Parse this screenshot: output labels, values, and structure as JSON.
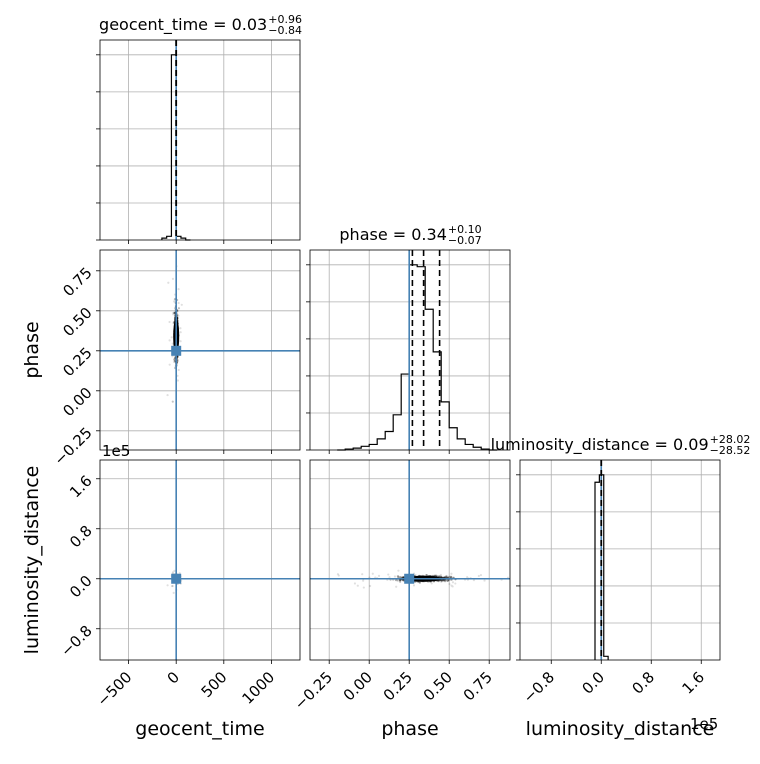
{
  "chart_data": {
    "type": "corner",
    "grid": true,
    "parameters": [
      {
        "name": "geocent_time",
        "label": "geocent_time",
        "median": "0.03",
        "plus": "+0.96",
        "minus": "−0.84",
        "title_prefix": "geocent_time = 0.03",
        "range": [
          -800,
          1300
        ],
        "ticks": [
          -500,
          0,
          500,
          1000
        ],
        "tick_labels": [
          "−500",
          "0",
          "500",
          "1000"
        ],
        "truth": 0.03,
        "quantiles": [
          -0.81,
          0.03,
          0.99
        ],
        "hist_edges": [
          -150,
          -100,
          -50,
          0,
          50,
          100,
          150
        ],
        "hist_counts": [
          0.01,
          0.02,
          1.0,
          0.02,
          0.01,
          0.0
        ]
      },
      {
        "name": "phase",
        "label": "phase",
        "median": "0.34",
        "plus": "+0.10",
        "minus": "−0.07",
        "title_prefix": "phase = 0.34",
        "range": [
          -0.37,
          0.88
        ],
        "ticks": [
          -0.25,
          0.0,
          0.25,
          0.5,
          0.75
        ],
        "tick_labels": [
          "−0.25",
          "0.00",
          "0.25",
          "0.50",
          "0.75"
        ],
        "truth": 0.25,
        "quantiles": [
          0.27,
          0.34,
          0.44
        ],
        "hist_edges": [
          -0.2,
          -0.15,
          -0.1,
          -0.05,
          0.0,
          0.05,
          0.1,
          0.15,
          0.2,
          0.25,
          0.3,
          0.35,
          0.4,
          0.45,
          0.5,
          0.55,
          0.6,
          0.65,
          0.7,
          0.75,
          0.8
        ],
        "hist_counts": [
          0.0,
          0.005,
          0.01,
          0.02,
          0.03,
          0.06,
          0.1,
          0.19,
          0.41,
          1.0,
          0.99,
          0.76,
          0.53,
          0.26,
          0.12,
          0.06,
          0.03,
          0.015,
          0.005,
          0.0
        ]
      },
      {
        "name": "luminosity_distance",
        "label": "luminosity_distance",
        "median": "0.09",
        "plus": "+28.02",
        "minus": "−28.52",
        "title_prefix": "luminosity_distance = 0.09",
        "range": [
          -130000,
          190000
        ],
        "ticks": [
          -80000,
          0,
          80000,
          160000
        ],
        "tick_labels": [
          "−0.8",
          "0.0",
          "0.8",
          "1.6"
        ],
        "offset_label": "1e5",
        "truth": 0.0,
        "quantiles": [
          -28.43,
          0.09,
          28.11
        ],
        "hist_edges": [
          -10000,
          -3000,
          4000,
          11000
        ],
        "hist_counts": [
          0.96,
          1.0,
          0.02
        ]
      }
    ],
    "scatter": [
      {
        "x": 0.03,
        "y": 0.34,
        "sx": 8,
        "sy": 0.07,
        "truth_point": [
          0.03,
          0.25
        ]
      },
      {
        "x": 0.03,
        "y": 0.0,
        "sx": 8,
        "sy": 2000,
        "truth_point": [
          0.03,
          0.0
        ]
      },
      {
        "x": 0.34,
        "y": 0.0,
        "sx": 0.07,
        "sy": 2000,
        "truth_point": [
          0.25,
          0.0
        ]
      }
    ],
    "colors": {
      "truth": "#4682b4",
      "hist": "#000000",
      "grid": "#b0b0b0"
    }
  }
}
